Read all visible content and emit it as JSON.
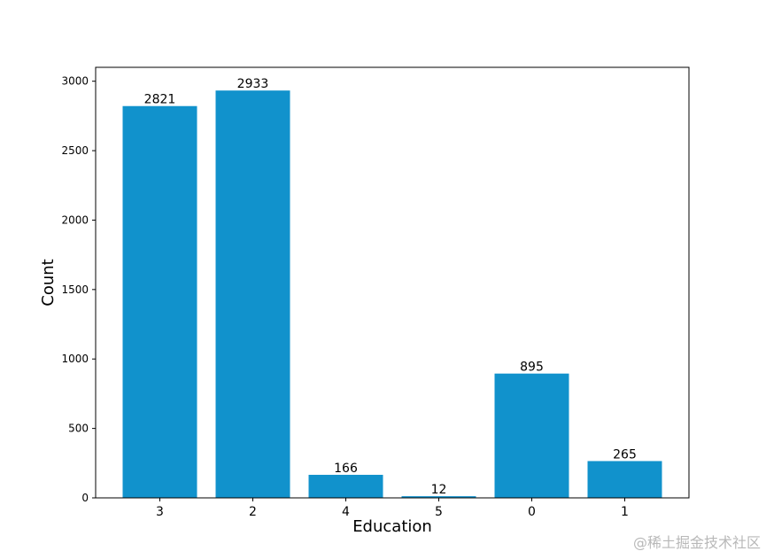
{
  "chart_data": {
    "type": "bar",
    "categories": [
      "3",
      "2",
      "4",
      "5",
      "0",
      "1"
    ],
    "values": [
      2821,
      2933,
      166,
      12,
      895,
      265
    ],
    "data_labels": [
      "2821",
      "2933",
      "166",
      "12",
      "895",
      "265"
    ],
    "title": "",
    "xlabel": "Education",
    "ylabel": "Count",
    "ylim": [
      0,
      3100
    ],
    "yticks": [
      0,
      500,
      1000,
      1500,
      2000,
      2500,
      3000
    ],
    "ytick_labels": [
      "0",
      "500",
      "1000",
      "1500",
      "2000",
      "2500",
      "3000"
    ],
    "grid": false,
    "bar_color": "#1192cc"
  },
  "watermark": "@稀土掘金技术社区"
}
